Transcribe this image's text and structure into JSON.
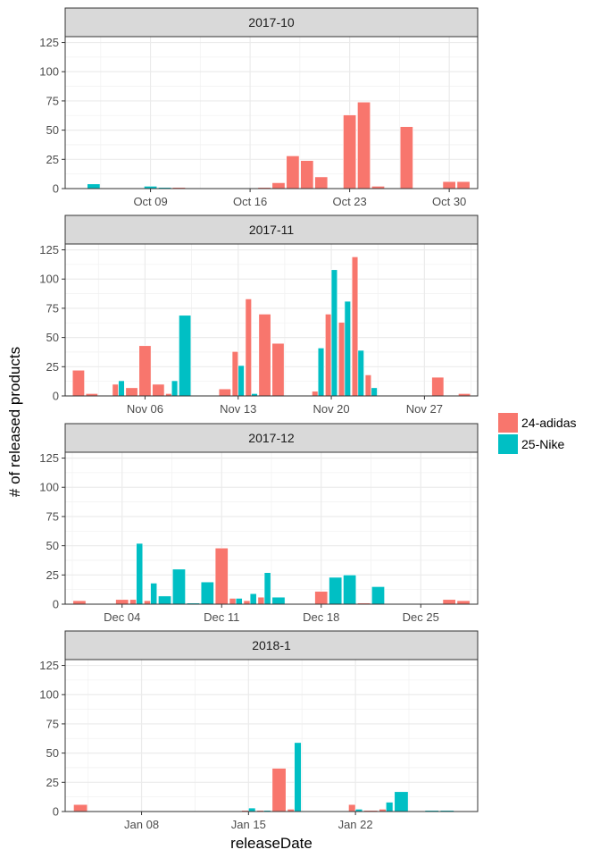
{
  "chart_data": {
    "type": "bar",
    "xlabel": "releaseDate",
    "ylabel": "# of released products",
    "ylim": [
      0,
      130
    ],
    "yticks": [
      0,
      25,
      50,
      75,
      100,
      125
    ],
    "grid": true,
    "legend": {
      "placement": "right",
      "entries": [
        {
          "name": "24-adidas",
          "color": "#F8766D"
        },
        {
          "name": "25-Nike",
          "color": "#00BFC4"
        }
      ]
    },
    "panels": [
      {
        "title": "2017-10",
        "xrange": [
          "2017-10-04",
          "2017-10-31"
        ],
        "xticks": [
          {
            "date": "2017-10-09",
            "label": "Oct 09"
          },
          {
            "date": "2017-10-16",
            "label": "Oct 16"
          },
          {
            "date": "2017-10-23",
            "label": "Oct 23"
          },
          {
            "date": "2017-10-30",
            "label": "Oct 30"
          }
        ],
        "series": [
          {
            "name": "24-adidas",
            "points": [
              [
                "2017-10-11",
                1
              ],
              [
                "2017-10-17",
                1
              ],
              [
                "2017-10-18",
                5
              ],
              [
                "2017-10-19",
                28
              ],
              [
                "2017-10-20",
                24
              ],
              [
                "2017-10-21",
                10
              ],
              [
                "2017-10-23",
                63
              ],
              [
                "2017-10-24",
                74
              ],
              [
                "2017-10-25",
                2
              ],
              [
                "2017-10-27",
                53
              ],
              [
                "2017-10-30",
                6
              ],
              [
                "2017-10-31",
                6
              ]
            ]
          },
          {
            "name": "25-Nike",
            "points": [
              [
                "2017-10-05",
                4
              ],
              [
                "2017-10-09",
                2
              ],
              [
                "2017-10-10",
                1
              ]
            ]
          }
        ]
      },
      {
        "title": "2017-11",
        "xrange": [
          "2017-11-01",
          "2017-11-30"
        ],
        "xticks": [
          {
            "date": "2017-11-06",
            "label": "Nov 06"
          },
          {
            "date": "2017-11-13",
            "label": "Nov 13"
          },
          {
            "date": "2017-11-20",
            "label": "Nov 20"
          },
          {
            "date": "2017-11-27",
            "label": "Nov 27"
          }
        ],
        "series": [
          {
            "name": "24-adidas",
            "points": [
              [
                "2017-11-01",
                22
              ],
              [
                "2017-11-02",
                2
              ],
              [
                "2017-11-04",
                10
              ],
              [
                "2017-11-05",
                7
              ],
              [
                "2017-11-06",
                43
              ],
              [
                "2017-11-07",
                10
              ],
              [
                "2017-11-08",
                2
              ],
              [
                "2017-11-12",
                6
              ],
              [
                "2017-11-13",
                38
              ],
              [
                "2017-11-14",
                83
              ],
              [
                "2017-11-15",
                70
              ],
              [
                "2017-11-16",
                45
              ],
              [
                "2017-11-19",
                4
              ],
              [
                "2017-11-20",
                70
              ],
              [
                "2017-11-21",
                63
              ],
              [
                "2017-11-22",
                119
              ],
              [
                "2017-11-23",
                18
              ],
              [
                "2017-11-28",
                16
              ],
              [
                "2017-11-30",
                2
              ]
            ]
          },
          {
            "name": "25-Nike",
            "points": [
              [
                "2017-11-04",
                13
              ],
              [
                "2017-11-08",
                13
              ],
              [
                "2017-11-09",
                69
              ],
              [
                "2017-11-13",
                26
              ],
              [
                "2017-11-14",
                2
              ],
              [
                "2017-11-19",
                41
              ],
              [
                "2017-11-20",
                108
              ],
              [
                "2017-11-21",
                81
              ],
              [
                "2017-11-22",
                39
              ],
              [
                "2017-11-23",
                7
              ]
            ]
          }
        ]
      },
      {
        "title": "2017-12",
        "xrange": [
          "2017-12-01",
          "2017-12-28"
        ],
        "xticks": [
          {
            "date": "2017-12-04",
            "label": "Dec 04"
          },
          {
            "date": "2017-12-11",
            "label": "Dec 11"
          },
          {
            "date": "2017-12-18",
            "label": "Dec 18"
          },
          {
            "date": "2017-12-25",
            "label": "Dec 25"
          }
        ],
        "series": [
          {
            "name": "24-adidas",
            "points": [
              [
                "2017-12-01",
                3
              ],
              [
                "2017-12-04",
                4
              ],
              [
                "2017-12-05",
                4
              ],
              [
                "2017-12-06",
                3
              ],
              [
                "2017-12-11",
                48
              ],
              [
                "2017-12-12",
                5
              ],
              [
                "2017-12-13",
                3
              ],
              [
                "2017-12-14",
                6
              ],
              [
                "2017-12-18",
                11
              ],
              [
                "2017-12-21",
                1
              ],
              [
                "2017-12-27",
                4
              ],
              [
                "2017-12-28",
                3
              ]
            ]
          },
          {
            "name": "25-Nike",
            "points": [
              [
                "2017-12-05",
                52
              ],
              [
                "2017-12-06",
                18
              ],
              [
                "2017-12-07",
                7
              ],
              [
                "2017-12-08",
                30
              ],
              [
                "2017-12-09",
                1
              ],
              [
                "2017-12-10",
                19
              ],
              [
                "2017-12-12",
                5
              ],
              [
                "2017-12-13",
                9
              ],
              [
                "2017-12-14",
                27
              ],
              [
                "2017-12-15",
                6
              ],
              [
                "2017-12-19",
                23
              ],
              [
                "2017-12-20",
                25
              ],
              [
                "2017-12-22",
                15
              ]
            ]
          }
        ]
      },
      {
        "title": "2018-1",
        "xrange": [
          "2018-01-04",
          "2018-01-29"
        ],
        "xticks": [
          {
            "date": "2018-01-08",
            "label": "Jan 08"
          },
          {
            "date": "2018-01-15",
            "label": "Jan 15"
          },
          {
            "date": "2018-01-22",
            "label": "Jan 22"
          }
        ],
        "series": [
          {
            "name": "24-adidas",
            "points": [
              [
                "2018-01-04",
                6
              ],
              [
                "2018-01-15",
                1
              ],
              [
                "2018-01-16",
                1
              ],
              [
                "2018-01-17",
                37
              ],
              [
                "2018-01-18",
                2
              ],
              [
                "2018-01-22",
                6
              ],
              [
                "2018-01-23",
                1
              ],
              [
                "2018-01-24",
                2
              ]
            ]
          },
          {
            "name": "25-Nike",
            "points": [
              [
                "2018-01-15",
                3
              ],
              [
                "2018-01-16",
                1
              ],
              [
                "2018-01-18",
                59
              ],
              [
                "2018-01-22",
                2
              ],
              [
                "2018-01-24",
                8
              ],
              [
                "2018-01-25",
                17
              ],
              [
                "2018-01-27",
                1
              ],
              [
                "2018-01-28",
                1
              ]
            ]
          }
        ]
      }
    ]
  }
}
